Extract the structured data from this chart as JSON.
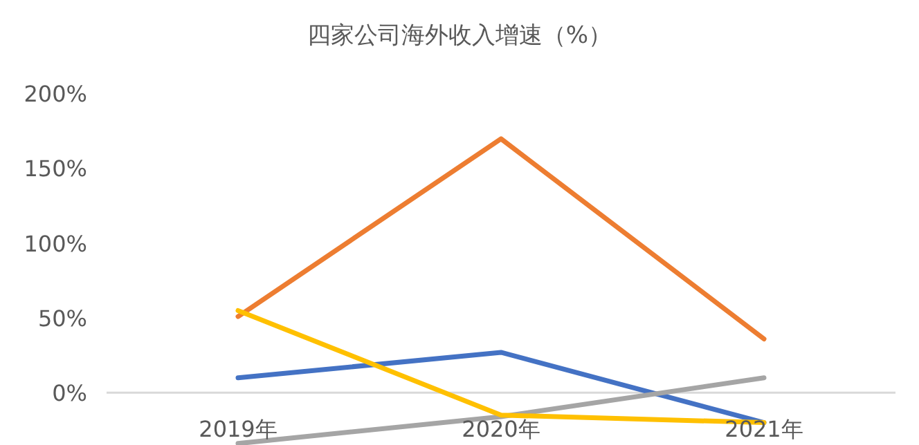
{
  "chart_data": {
    "type": "line",
    "title": "四家公司海外收入增速（%）",
    "categories": [
      "2019年",
      "2020年",
      "2021年"
    ],
    "series": [
      {
        "color": "#4472c4",
        "values": [
          10,
          27,
          -20
        ]
      },
      {
        "color": "#ed7d31",
        "values": [
          51,
          170,
          36
        ]
      },
      {
        "color": "#a5a5a5",
        "values": [
          -34,
          -16,
          10
        ]
      },
      {
        "color": "#ffc000",
        "values": [
          55,
          -15,
          -20
        ]
      }
    ],
    "ylim": [
      -35,
      200
    ],
    "yticks": [
      {
        "value": 0,
        "label": "0%"
      },
      {
        "value": 50,
        "label": "50%"
      },
      {
        "value": 100,
        "label": "100%"
      },
      {
        "value": 150,
        "label": "150%"
      },
      {
        "value": 200,
        "label": "200%"
      }
    ],
    "ref_lines": [
      {
        "axis": "y",
        "value": 0,
        "color": "#d9d9d9"
      }
    ],
    "grid": false,
    "legend": false,
    "marker": "none",
    "line_style": "solid"
  }
}
